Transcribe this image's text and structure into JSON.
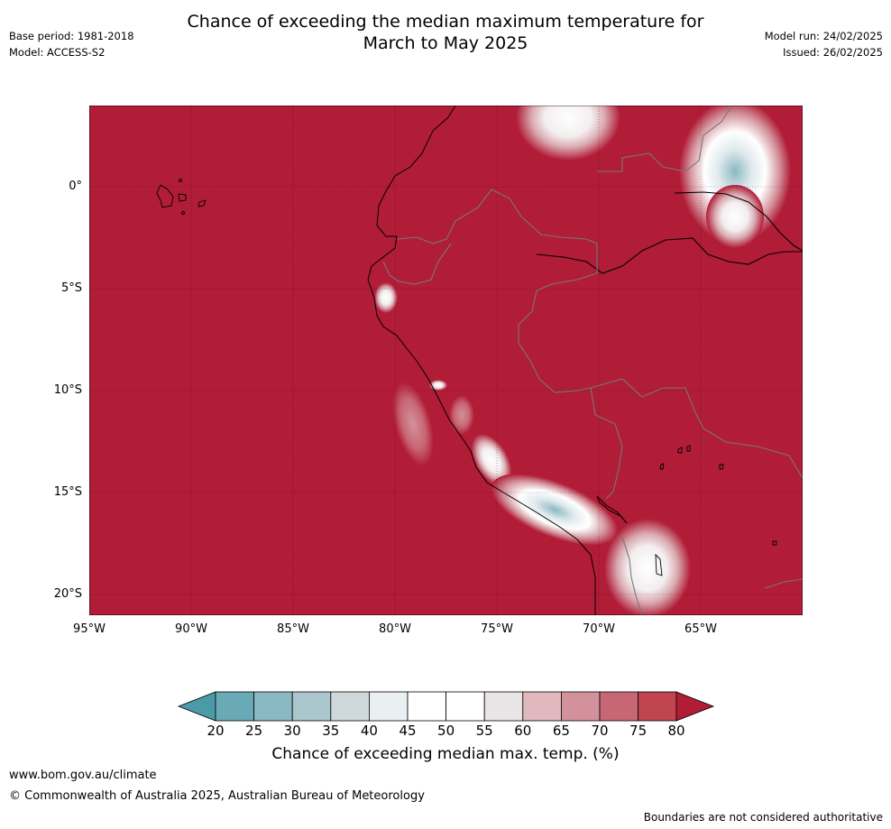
{
  "header": {
    "title_line1": "Chance of exceeding the median maximum temperature for",
    "title_line2": "March to May 2025",
    "base_period": "Base period: 1981-2018",
    "model": "Model: ACCESS-S2",
    "model_run": "Model run: 24/02/2025",
    "issued": "Issued: 26/02/2025"
  },
  "map": {
    "background_color": "#b11c37",
    "lat_ticks": [
      "0°",
      "5°S",
      "10°S",
      "15°S",
      "20°S"
    ],
    "lon_ticks": [
      "95°W",
      "90°W",
      "85°W",
      "80°W",
      "75°W",
      "70°W",
      "65°W"
    ]
  },
  "colorbar": {
    "title": "Chance of exceeding median max. temp. (%)",
    "ticks": [
      "20",
      "25",
      "30",
      "35",
      "40",
      "45",
      "50",
      "55",
      "60",
      "65",
      "70",
      "75",
      "80"
    ],
    "colors": [
      "#4a9aa8",
      "#6aaab6",
      "#8ab8c3",
      "#abc7cd",
      "#cfd9dc",
      "#eaf0f2",
      "#ffffff",
      "#ffffff",
      "#e9e5e6",
      "#e0b9be",
      "#d3929b",
      "#c76674",
      "#c0454f",
      "#b11c37"
    ]
  },
  "footer": {
    "url": "www.bom.gov.au/climate",
    "copyright": "© Commonwealth of Australia 2025, Australian Bureau of Meteorology",
    "note": "Boundaries are not considered authoritative"
  }
}
